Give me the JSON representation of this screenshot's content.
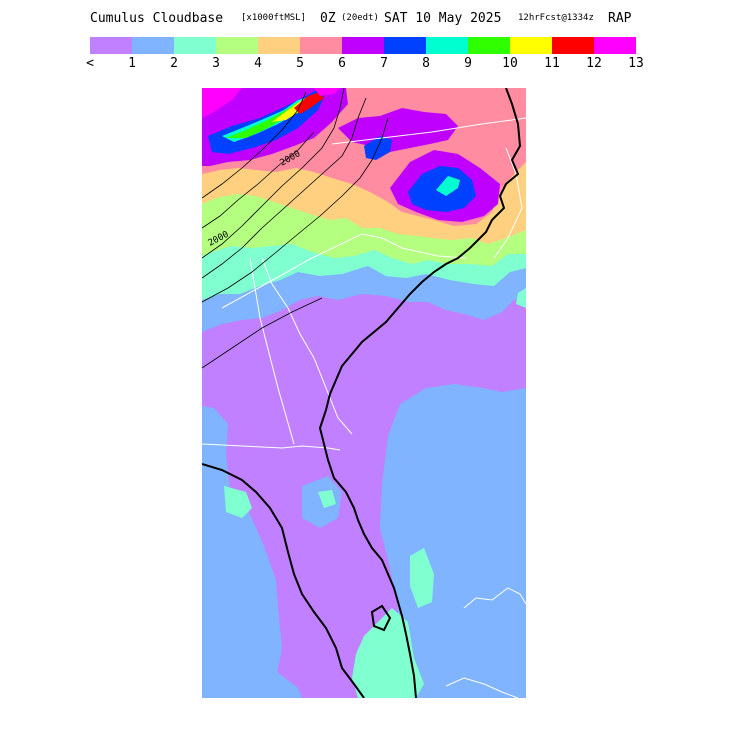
{
  "title": {
    "main": "Cumulus Cloudbase",
    "units": "[x1000ftMSL]",
    "time": "0Z",
    "zone": "(20edt)",
    "date": "SAT 10 May 2025",
    "forecast": "12hrFcst@1334z",
    "model": "RAP"
  },
  "legend": {
    "tick_labels": [
      "<",
      "1",
      "2",
      "3",
      "4",
      "5",
      "6",
      "7",
      "8",
      "9",
      "10",
      "11",
      "12",
      "13"
    ],
    "colors": [
      "#c080ff",
      "#80b4ff",
      "#80ffd0",
      "#b4ff80",
      "#ffd080",
      "#ff8ca0",
      "#c000ff",
      "#0040ff",
      "#00ffd0",
      "#30ff00",
      "#ffff00",
      "#ff0000",
      "#ff00ff"
    ]
  },
  "map": {
    "contour_labels": [
      "2000",
      "2000"
    ],
    "colors": {
      "lt1": "#c080ff",
      "c1": "#80b4ff",
      "c2": "#80ffd0",
      "c3": "#b4ff80",
      "c4": "#ffd080",
      "c5": "#ff8ca0",
      "c6": "#c000ff",
      "c7": "#0040ff",
      "c8": "#00ffd0",
      "c9": "#30ff00",
      "c10": "#ffff00",
      "c11": "#ff0000",
      "c12": "#ff00ff"
    }
  }
}
